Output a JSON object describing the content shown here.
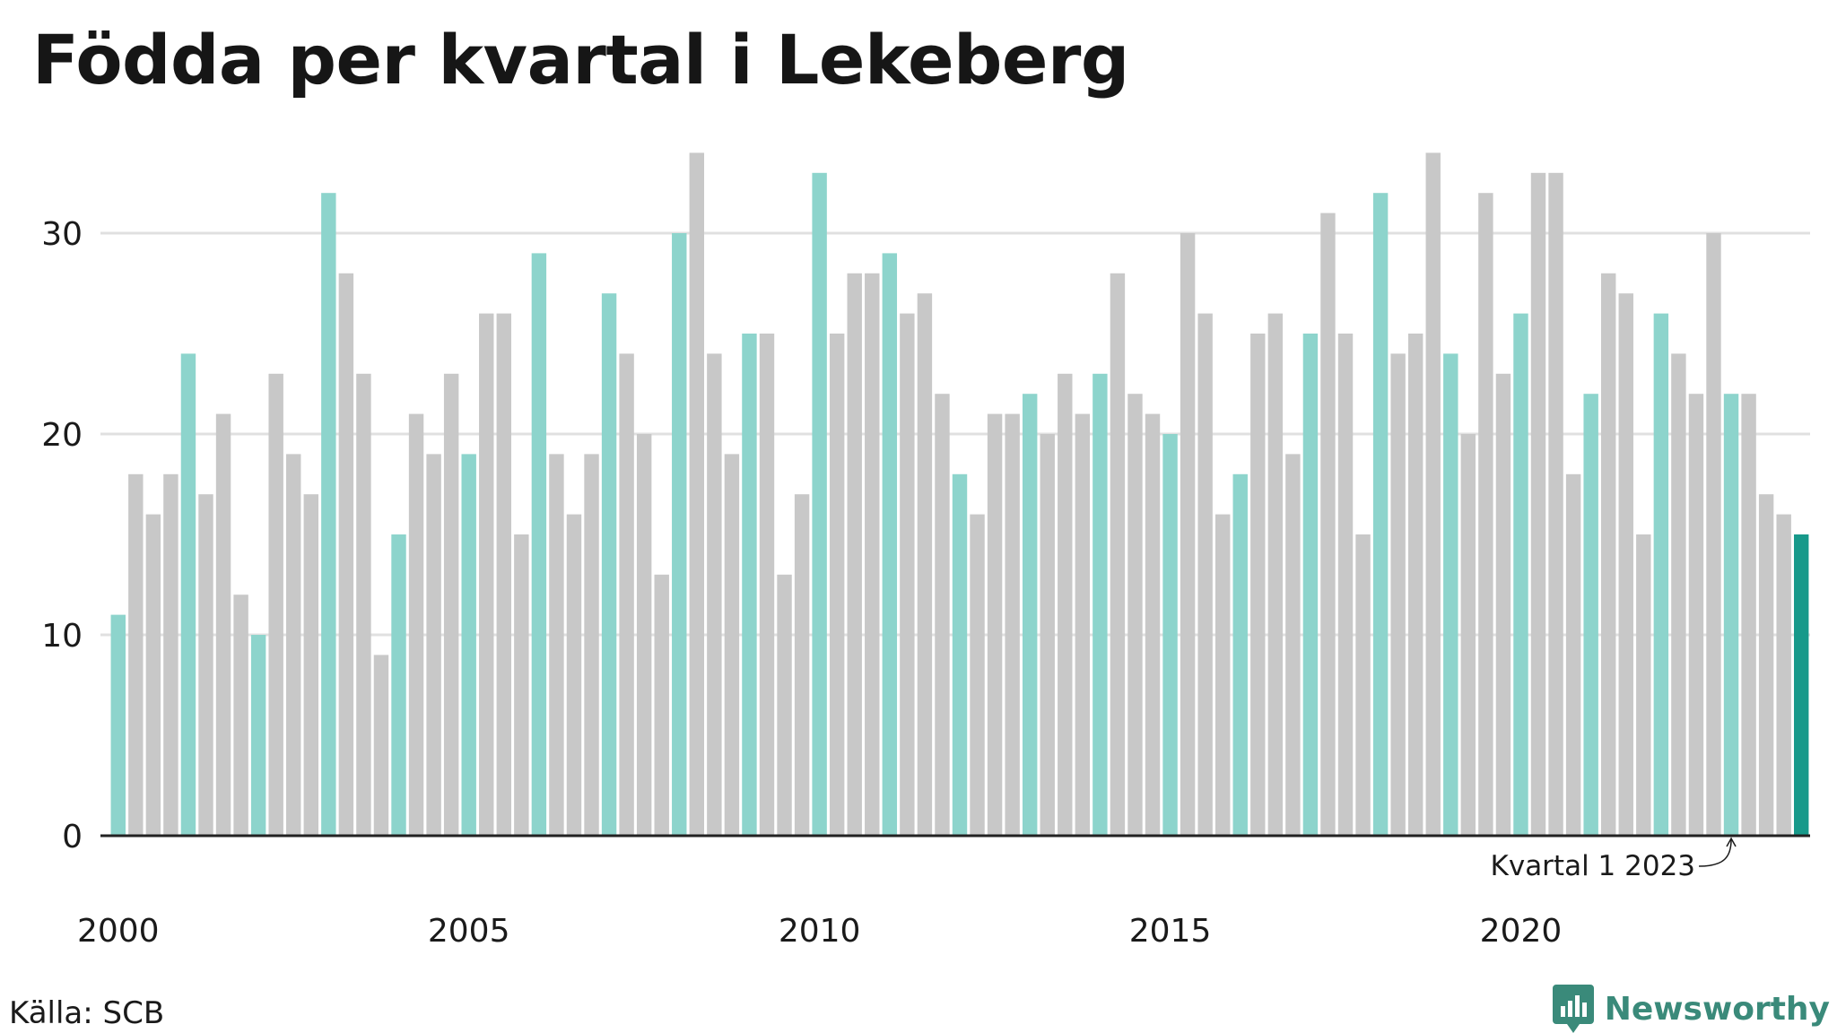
{
  "title": "Födda per kvartal i Lekeberg",
  "source": "Källa: SCB",
  "brand": {
    "name": "Newsworthy",
    "icon": "newsworthy-logo-icon"
  },
  "colors": {
    "q1": "#8dd4cc",
    "other": "#c8c8c8",
    "latest": "#17998a",
    "grid": "#e0e0e0",
    "axis": "#222222",
    "brand": "#3a8a7a"
  },
  "chart_data": {
    "type": "bar",
    "title": "Födda per kvartal i Lekeberg",
    "xlabel": "",
    "ylabel": "",
    "ylim": [
      0,
      34
    ],
    "y_ticks": [
      0,
      10,
      20,
      30
    ],
    "x_tick_labels": [
      "2000",
      "2005",
      "2010",
      "2015",
      "2020"
    ],
    "grid": true,
    "start": {
      "year": 2000,
      "quarter": 1
    },
    "values": [
      11,
      18,
      16,
      18,
      24,
      17,
      21,
      12,
      10,
      23,
      19,
      17,
      32,
      28,
      23,
      9,
      15,
      21,
      19,
      23,
      19,
      26,
      26,
      15,
      29,
      19,
      16,
      19,
      27,
      24,
      20,
      13,
      30,
      34,
      24,
      19,
      25,
      25,
      13,
      17,
      33,
      25,
      28,
      28,
      29,
      26,
      27,
      22,
      18,
      16,
      21,
      21,
      22,
      20,
      23,
      21,
      23,
      28,
      22,
      21,
      20,
      30,
      26,
      16,
      18,
      25,
      26,
      19,
      25,
      31,
      25,
      15,
      32,
      24,
      25,
      34,
      24,
      20,
      32,
      23,
      26,
      33,
      33,
      18,
      22,
      28,
      27,
      15,
      26,
      24,
      22,
      30,
      22,
      22,
      17,
      16,
      15
    ],
    "annotations": [
      {
        "text": "Kvartal 1 2023",
        "year": 2023,
        "quarter": 1
      }
    ]
  }
}
